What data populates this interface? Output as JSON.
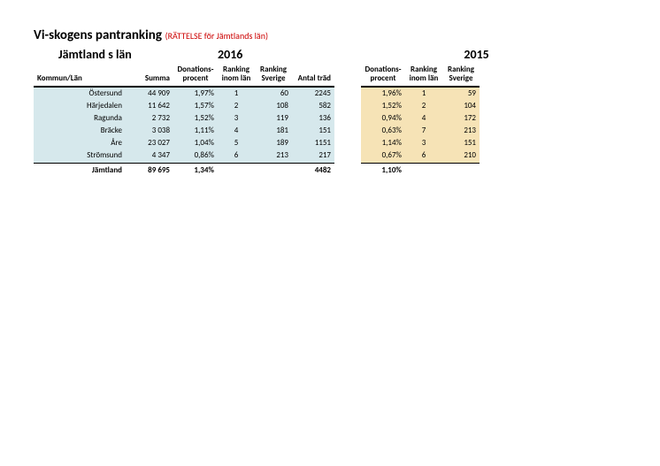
{
  "title": {
    "main": "Vi-skogens pantranking",
    "note": "(RÄTTELSE för Jämtlands län)"
  },
  "subtitle": {
    "region": "Jämtland s län",
    "year_left": "2016",
    "year_right": "2015"
  },
  "headers": {
    "kommun": "Kommun/Län",
    "summa": "Summa",
    "donp": "Donations-\nprocent",
    "rank_in": "Ranking\ninom län",
    "rank_sv": "Ranking\nSverige",
    "antal": "Antal träd"
  },
  "colors": {
    "bg_2016": "#d6e8ec",
    "bg_2015": "#f6e3b6",
    "note_color": "#cc0000",
    "text": "#000000",
    "background": "#ffffff"
  },
  "rows": [
    {
      "kommun": "Östersund",
      "summa": "44 909",
      "donp": "1,97%",
      "rank_in": "1",
      "rank_sv": "60",
      "antal": "2245",
      "donp2": "1,96%",
      "rank_in2": "1",
      "rank_sv2": "59"
    },
    {
      "kommun": "Härjedalen",
      "summa": "11 642",
      "donp": "1,57%",
      "rank_in": "2",
      "rank_sv": "108",
      "antal": "582",
      "donp2": "1,52%",
      "rank_in2": "2",
      "rank_sv2": "104"
    },
    {
      "kommun": "Ragunda",
      "summa": "2 732",
      "donp": "1,52%",
      "rank_in": "3",
      "rank_sv": "119",
      "antal": "136",
      "donp2": "0,94%",
      "rank_in2": "4",
      "rank_sv2": "172"
    },
    {
      "kommun": "Bräcke",
      "summa": "3 038",
      "donp": "1,11%",
      "rank_in": "4",
      "rank_sv": "181",
      "antal": "151",
      "donp2": "0,63%",
      "rank_in2": "7",
      "rank_sv2": "213"
    },
    {
      "kommun": "Åre",
      "summa": "23 027",
      "donp": "1,04%",
      "rank_in": "5",
      "rank_sv": "189",
      "antal": "1151",
      "donp2": "1,14%",
      "rank_in2": "3",
      "rank_sv2": "151"
    },
    {
      "kommun": "Strömsund",
      "summa": "4 347",
      "donp": "0,86%",
      "rank_in": "6",
      "rank_sv": "213",
      "antal": "217",
      "donp2": "0,67%",
      "rank_in2": "6",
      "rank_sv2": "210"
    }
  ],
  "total": {
    "kommun": "Jämtland",
    "summa": "89 695",
    "donp": "1,34%",
    "antal": "4482",
    "donp2": "1,10%"
  }
}
